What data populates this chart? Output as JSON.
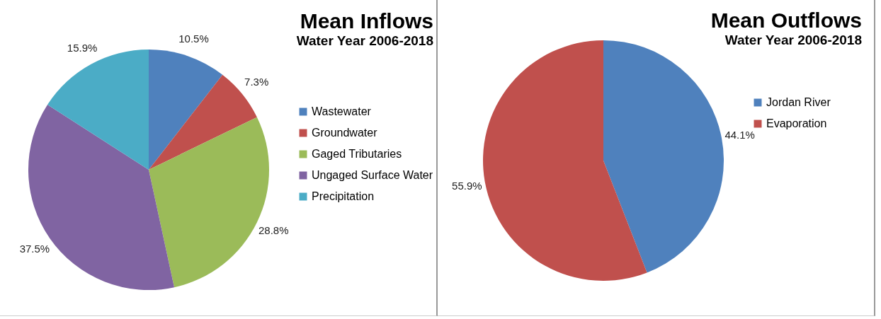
{
  "chart_data": [
    {
      "type": "pie",
      "title": "Mean Inflows",
      "subtitle": "Water Year 2006-2018",
      "categories": [
        "Wastewater",
        "Groundwater",
        "Gaged Tributaries",
        "Ungaged Surface Water",
        "Precipitation"
      ],
      "values": [
        10.5,
        7.3,
        28.8,
        37.5,
        15.9
      ],
      "value_labels": [
        "10.5%",
        "7.3%",
        "28.8%",
        "37.5%",
        "15.9%"
      ],
      "colors": [
        "#4f81bd",
        "#c0504d",
        "#9bbb59",
        "#8064a2",
        "#4bacc6"
      ],
      "legend": "right"
    },
    {
      "type": "pie",
      "title": "Mean Outflows",
      "subtitle": "Water Year 2006-2018",
      "categories": [
        "Jordan River",
        "Evaporation"
      ],
      "values": [
        44.1,
        55.9
      ],
      "value_labels": [
        "44.1%",
        "55.9%"
      ],
      "colors": [
        "#4f81bd",
        "#c0504d"
      ],
      "legend": "right"
    }
  ]
}
